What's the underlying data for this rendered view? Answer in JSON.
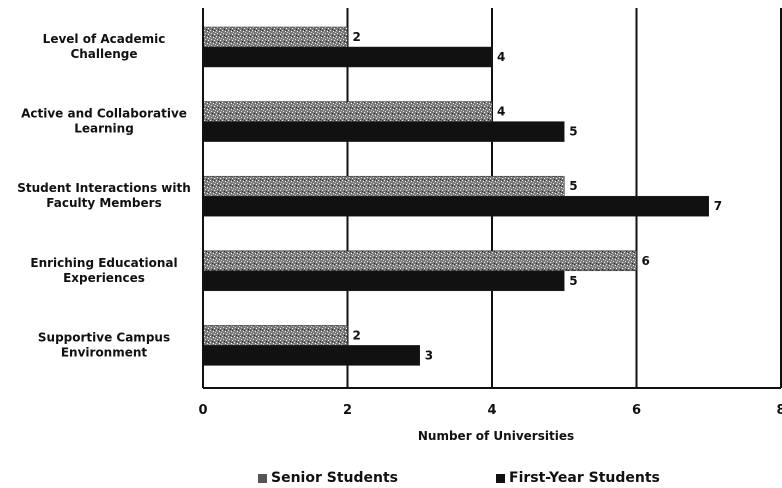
{
  "chart_data": {
    "type": "bar",
    "orientation": "horizontal",
    "categories": [
      [
        "Level of Academic",
        "Challenge"
      ],
      [
        "Active and Collaborative",
        "Learning"
      ],
      [
        "Student Interactions with",
        "Faculty Members"
      ],
      [
        "Enriching Educational",
        "Experiences"
      ],
      [
        "Supportive Campus",
        "Environment"
      ]
    ],
    "series": [
      {
        "name": "Senior Students",
        "values": [
          2,
          4,
          5,
          6,
          2
        ],
        "color": "#9a9a9a",
        "pattern": "speckled"
      },
      {
        "name": "First-Year Students",
        "values": [
          4,
          5,
          7,
          5,
          3
        ],
        "color": "#111111"
      }
    ],
    "xlabel": "Number of Universities",
    "xlim": [
      0,
      8
    ],
    "xticks": [
      "0",
      "2",
      "4",
      "6",
      "8"
    ],
    "grid": true,
    "legend_position": "bottom"
  }
}
